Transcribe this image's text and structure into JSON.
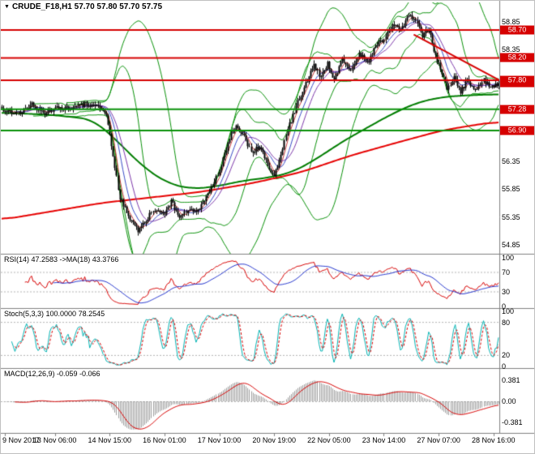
{
  "header": {
    "dropdown_icon": "▼",
    "text": "CRUDE_F18,H1 57.70 57.80 57.70 57.75"
  },
  "chart_data": [
    {
      "type": "candlestick",
      "title": "CRUDE_F18,H1",
      "symbol": "CRUDE_F18",
      "timeframe": "H1",
      "ohlc_display": {
        "open": "57.70",
        "high": "57.80",
        "low": "57.70",
        "close": "57.75"
      },
      "n_candles": 300,
      "y_axis": {
        "range": [
          54.72,
          59.02
        ],
        "plain_ticks": [
          58.85,
          58.35,
          56.35,
          55.85,
          55.35,
          54.85
        ]
      },
      "x_axis": {
        "labels": [
          "9 Nov 2017",
          "13 Nov 06:00",
          "14 Nov 15:00",
          "16 Nov 01:00",
          "17 Nov 10:00",
          "20 Nov 19:00",
          "22 Nov 05:00",
          "23 Nov 14:00",
          "27 Nov 07:00",
          "28 Nov 16:00"
        ],
        "indices": [
          2,
          32,
          65,
          98,
          131,
          164,
          197,
          230,
          263,
          296
        ]
      },
      "horizontal_lines": [
        {
          "price": 58.7,
          "label": "58.70",
          "color": "#d60000"
        },
        {
          "price": 58.2,
          "label": "58.20",
          "color": "#d60000"
        },
        {
          "price": 57.8,
          "label": "57.80",
          "color": "#d60000"
        },
        {
          "price": 57.28,
          "label": "57.28",
          "color": "#089008"
        },
        {
          "price": 56.9,
          "label": "56.90",
          "color": "#089008"
        }
      ],
      "current_price": {
        "value": 57.75,
        "label": "57.75"
      },
      "trendline": {
        "i1": 248,
        "p1": 58.62,
        "i2": 300,
        "p2": 57.8,
        "color": "#d60000"
      },
      "close_waypoints": [
        [
          0,
          57.28
        ],
        [
          10,
          57.2
        ],
        [
          18,
          57.36
        ],
        [
          26,
          57.22
        ],
        [
          34,
          57.32
        ],
        [
          42,
          57.28
        ],
        [
          50,
          57.38
        ],
        [
          58,
          57.32
        ],
        [
          63,
          57.2
        ],
        [
          67,
          56.4
        ],
        [
          71,
          55.7
        ],
        [
          76,
          55.38
        ],
        [
          82,
          55.12
        ],
        [
          87,
          55.3
        ],
        [
          92,
          55.5
        ],
        [
          97,
          55.38
        ],
        [
          102,
          55.62
        ],
        [
          107,
          55.36
        ],
        [
          112,
          55.5
        ],
        [
          117,
          55.42
        ],
        [
          122,
          55.65
        ],
        [
          127,
          55.9
        ],
        [
          132,
          56.3
        ],
        [
          137,
          56.75
        ],
        [
          141,
          57.0
        ],
        [
          145,
          56.85
        ],
        [
          150,
          56.5
        ],
        [
          155,
          56.62
        ],
        [
          160,
          56.3
        ],
        [
          164,
          56.05
        ],
        [
          168,
          56.5
        ],
        [
          173,
          57.0
        ],
        [
          178,
          57.4
        ],
        [
          183,
          57.75
        ],
        [
          188,
          58.05
        ],
        [
          192,
          57.85
        ],
        [
          196,
          58.1
        ],
        [
          200,
          57.8
        ],
        [
          205,
          58.2
        ],
        [
          210,
          57.95
        ],
        [
          215,
          58.3
        ],
        [
          220,
          58.1
        ],
        [
          225,
          58.4
        ],
        [
          230,
          58.55
        ],
        [
          235,
          58.8
        ],
        [
          240,
          58.7
        ],
        [
          245,
          58.95
        ],
        [
          250,
          58.85
        ],
        [
          253,
          58.6
        ],
        [
          257,
          58.75
        ],
        [
          260,
          58.3
        ],
        [
          264,
          58.0
        ],
        [
          268,
          57.65
        ],
        [
          272,
          57.85
        ],
        [
          276,
          57.6
        ],
        [
          280,
          57.8
        ],
        [
          285,
          57.65
        ],
        [
          290,
          57.8
        ],
        [
          294,
          57.68
        ],
        [
          299,
          57.75
        ]
      ],
      "overlays": {
        "bb1": {
          "period": 20,
          "dev": 2.0,
          "color": "#089008"
        },
        "bb2": {
          "period": 40,
          "dev": 2.6,
          "color": "#089008"
        },
        "ribbon": [
          {
            "period": 5,
            "color": "#c43535"
          },
          {
            "period": 10,
            "color": "#3548c4"
          },
          {
            "period": 16,
            "color": "#7a35a8"
          }
        ],
        "ma_green": {
          "color": "#007d00",
          "width": 2,
          "waypoints": [
            [
              0,
              57.22
            ],
            [
              30,
              57.18
            ],
            [
              55,
              57.1
            ],
            [
              70,
              56.7
            ],
            [
              85,
              56.25
            ],
            [
              100,
              55.95
            ],
            [
              115,
              55.85
            ],
            [
              130,
              55.9
            ],
            [
              145,
              56.0
            ],
            [
              160,
              56.05
            ],
            [
              175,
              56.15
            ],
            [
              190,
              56.4
            ],
            [
              205,
              56.7
            ],
            [
              220,
              56.95
            ],
            [
              235,
              57.2
            ],
            [
              250,
              57.4
            ],
            [
              265,
              57.5
            ],
            [
              280,
              57.53
            ],
            [
              299,
              57.55
            ]
          ]
        },
        "ma_red": {
          "color": "#e60000",
          "width": 2,
          "waypoints": [
            [
              0,
              55.3
            ],
            [
              30,
              55.45
            ],
            [
              60,
              55.6
            ],
            [
              90,
              55.7
            ],
            [
              120,
              55.8
            ],
            [
              150,
              55.95
            ],
            [
              180,
              56.15
            ],
            [
              210,
              56.45
            ],
            [
              240,
              56.7
            ],
            [
              265,
              56.9
            ],
            [
              285,
              57.0
            ],
            [
              299,
              57.06
            ]
          ]
        }
      }
    },
    {
      "type": "line",
      "name": "RSI",
      "label": "RSI(14) 47.2583 ->MA(18) 43.3766",
      "period": 14,
      "ma_period": 18,
      "levels": [
        70,
        30
      ],
      "tick_values": [
        100,
        70,
        30,
        0
      ],
      "last_values": {
        "rsi": 47.2583,
        "ma": 43.3766
      },
      "colors": {
        "main": "#d60000",
        "ma": "#2233cc"
      }
    },
    {
      "type": "line",
      "name": "Stochastic",
      "label": "Stoch(5,3,3) 100.0000 78.2545",
      "k_period": 5,
      "slowing": 3,
      "d_period": 3,
      "levels": [
        80,
        20
      ],
      "tick_values": [
        100,
        80,
        20,
        0
      ],
      "last_values": {
        "k": 100.0,
        "d": 78.2545
      },
      "colors": {
        "k": "#00b2b2",
        "d": "#d60000"
      }
    },
    {
      "type": "macd",
      "name": "MACD",
      "label": "MACD(12,26,9) -0.059 -0.066",
      "fast": 12,
      "slow": 26,
      "signal": 9,
      "tick_values": [
        0.381,
        0,
        -0.381
      ],
      "tick_labels": [
        "0.381",
        "0.00",
        "-0.381"
      ],
      "last_values": {
        "macd": -0.059,
        "signal": -0.066
      },
      "colors": {
        "hist": "#9c9c9c",
        "signal": "#d60000"
      }
    }
  ]
}
